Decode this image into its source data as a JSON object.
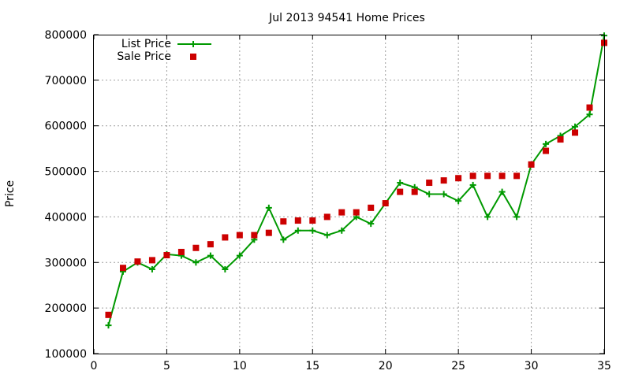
{
  "chart_data": {
    "type": "line",
    "title": "Jul 2013 94541 Home Prices",
    "xlabel": "",
    "ylabel": "Price",
    "xlim": [
      0,
      35
    ],
    "ylim": [
      100000,
      800000
    ],
    "xticks": [
      0,
      5,
      10,
      15,
      20,
      25,
      30,
      35
    ],
    "yticks": [
      100000,
      200000,
      300000,
      400000,
      500000,
      600000,
      700000,
      800000
    ],
    "grid": true,
    "legend_position": "top-left",
    "series": [
      {
        "name": "List Price",
        "style": "line-with-plus-markers",
        "color": "#009900",
        "x": [
          1,
          2,
          3,
          4,
          5,
          6,
          7,
          8,
          9,
          10,
          11,
          12,
          13,
          14,
          15,
          16,
          17,
          18,
          19,
          20,
          21,
          22,
          23,
          24,
          25,
          26,
          27,
          28,
          29,
          30,
          31,
          32,
          33,
          34,
          35
        ],
        "values": [
          162000,
          280000,
          300000,
          285000,
          318000,
          315000,
          300000,
          315000,
          285000,
          315000,
          350000,
          420000,
          350000,
          370000,
          370000,
          360000,
          370000,
          400000,
          385000,
          430000,
          475000,
          465000,
          450000,
          450000,
          435000,
          470000,
          400000,
          455000,
          400000,
          515000,
          560000,
          578000,
          598000,
          625000,
          798000
        ]
      },
      {
        "name": "Sale Price",
        "style": "square-markers",
        "color": "#cc0000",
        "x": [
          1,
          2,
          3,
          4,
          5,
          6,
          7,
          8,
          9,
          10,
          11,
          12,
          13,
          14,
          15,
          16,
          17,
          18,
          19,
          20,
          21,
          22,
          23,
          24,
          25,
          26,
          27,
          28,
          29,
          30,
          31,
          32,
          33,
          34,
          35
        ],
        "values": [
          185000,
          288000,
          302000,
          305000,
          316000,
          323000,
          332000,
          340000,
          355000,
          360000,
          360000,
          365000,
          390000,
          392000,
          392000,
          400000,
          410000,
          410000,
          420000,
          430000,
          455000,
          455000,
          475000,
          480000,
          485000,
          490000,
          490000,
          490000,
          490000,
          515000,
          545000,
          570000,
          585000,
          640000,
          782000
        ]
      }
    ]
  }
}
